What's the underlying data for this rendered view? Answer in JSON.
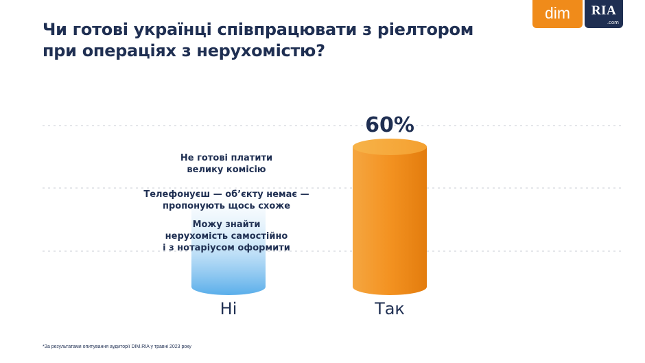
{
  "header": {
    "title_line1": "Чи готові українці співпрацювати з ріелтором",
    "title_line2": "при операціях з нерухомістю?"
  },
  "logos": {
    "dim": "dim",
    "ria": "RIA",
    "ria_sub": ".com"
  },
  "reasons": {
    "r1_line1": "Не готові платити",
    "r1_line2": "велику комісію",
    "r2_line1": "Телефонуєш — об’єкту немає —",
    "r2_line2": "пропонують щось схоже",
    "r3_line1": "Можу знайти",
    "r3_line2": "нерухомість самостійно",
    "r3_line3": "і з нотаріусом оформити"
  },
  "footnote": "*За результатами опитування аудиторії DIM.RIA у травні 2023 року",
  "colors": {
    "title": "#1f2f52",
    "orange": "#f08b1a",
    "blue": "#5aaeea"
  },
  "chart_data": {
    "type": "bar",
    "style": "cylinder",
    "categories": [
      "Ні",
      "Так"
    ],
    "values": [
      40,
      60
    ],
    "data_labels": [
      "",
      "60%"
    ],
    "ylim": [
      0,
      100
    ],
    "grid": true,
    "colors": [
      "#5aaeea",
      "#f08b1a"
    ]
  }
}
